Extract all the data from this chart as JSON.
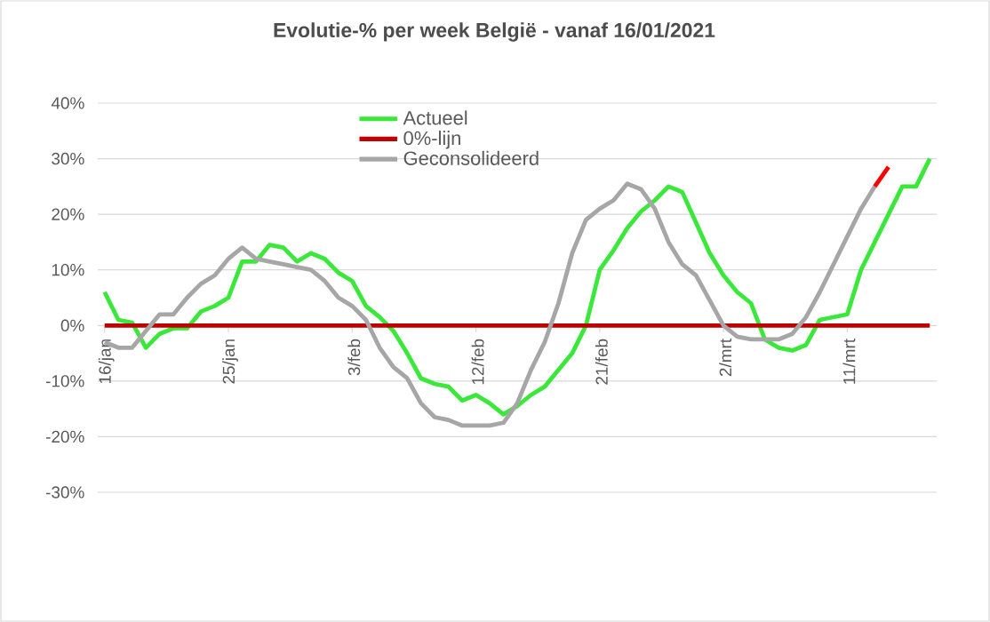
{
  "chart_data": {
    "type": "line",
    "title": "Evolutie-% per week België - vanaf 16/01/2021",
    "categories": [
      "16/jan",
      null,
      null,
      null,
      null,
      null,
      null,
      null,
      null,
      "25/jan",
      null,
      null,
      null,
      null,
      null,
      null,
      null,
      null,
      "3/feb",
      null,
      null,
      null,
      null,
      null,
      null,
      null,
      null,
      "12/feb",
      null,
      null,
      null,
      null,
      null,
      null,
      null,
      null,
      "21/feb",
      null,
      null,
      null,
      null,
      null,
      null,
      null,
      null,
      "2/mrt",
      null,
      null,
      null,
      null,
      null,
      null,
      null,
      null,
      "11/mrt",
      null,
      null,
      null,
      null,
      null,
      null
    ],
    "series": [
      {
        "name": "Actueel",
        "color": "#3ae83a",
        "values": [
          6,
          1,
          0.5,
          -4,
          -1.5,
          -0.5,
          -0.5,
          2.5,
          3.5,
          5,
          11.5,
          11.5,
          14.5,
          14,
          11.5,
          13,
          12,
          9.5,
          8,
          3.5,
          1.5,
          -1,
          -5,
          -9.5,
          -10.5,
          -11,
          -13.5,
          -12.5,
          -14,
          -16,
          -14.5,
          -12.5,
          -11,
          -8,
          -5,
          0,
          10,
          13.5,
          17.5,
          20.5,
          22.5,
          25,
          24,
          18.5,
          13,
          9,
          6,
          4,
          -2.5,
          -4,
          -4.5,
          -3.5,
          1,
          1.5,
          2,
          10,
          15,
          20,
          25,
          25,
          30
        ]
      },
      {
        "name": "0%-lijn",
        "color": "#c00000",
        "values": [
          0,
          0,
          0,
          0,
          0,
          0,
          0,
          0,
          0,
          0,
          0,
          0,
          0,
          0,
          0,
          0,
          0,
          0,
          0,
          0,
          0,
          0,
          0,
          0,
          0,
          0,
          0,
          0,
          0,
          0,
          0,
          0,
          0,
          0,
          0,
          0,
          0,
          0,
          0,
          0,
          0,
          0,
          0,
          0,
          0,
          0,
          0,
          0,
          0,
          0,
          0,
          0,
          0,
          0,
          0,
          0,
          0,
          0,
          0,
          0,
          0
        ]
      },
      {
        "name": "Geconsolideerd",
        "color": "#a6a6a6",
        "values": [
          -3,
          -4,
          -4,
          -1,
          2,
          2,
          5,
          7.5,
          9,
          12,
          14,
          12,
          11.5,
          11,
          10.5,
          10,
          8,
          5,
          3.5,
          1,
          -4,
          -7.5,
          -9.5,
          -14,
          -16.5,
          -17,
          -18,
          -18,
          -18,
          -17.5,
          -14,
          -8,
          -3,
          4,
          13,
          19,
          21,
          22.5,
          25.5,
          24.5,
          21,
          15,
          11,
          9,
          4.5,
          0,
          -2,
          -2.5,
          -2.5,
          -2.5,
          -1.5,
          1.5,
          6,
          11,
          16,
          21,
          25,
          null,
          null,
          null,
          null
        ]
      },
      {
        "color": "#ff0000",
        "values": [
          null,
          null,
          null,
          null,
          null,
          null,
          null,
          null,
          null,
          null,
          null,
          null,
          null,
          null,
          null,
          null,
          null,
          null,
          null,
          null,
          null,
          null,
          null,
          null,
          null,
          null,
          null,
          null,
          null,
          null,
          null,
          null,
          null,
          null,
          null,
          null,
          null,
          null,
          null,
          null,
          null,
          null,
          null,
          null,
          null,
          null,
          null,
          null,
          null,
          null,
          null,
          null,
          null,
          null,
          null,
          null,
          25,
          28.5,
          null,
          null,
          null
        ]
      }
    ],
    "ylim": [
      -30,
      40
    ],
    "yticks": [
      {
        "value": -30,
        "label": "-30%"
      },
      {
        "value": -20,
        "label": "-20%"
      },
      {
        "value": -10,
        "label": "-10%"
      },
      {
        "value": 0,
        "label": "0%"
      },
      {
        "value": 10,
        "label": "10%"
      },
      {
        "value": 20,
        "label": "20%"
      },
      {
        "value": 30,
        "label": "30%"
      },
      {
        "value": 40,
        "label": "40%"
      }
    ],
    "grid": "y",
    "legend": "top"
  }
}
